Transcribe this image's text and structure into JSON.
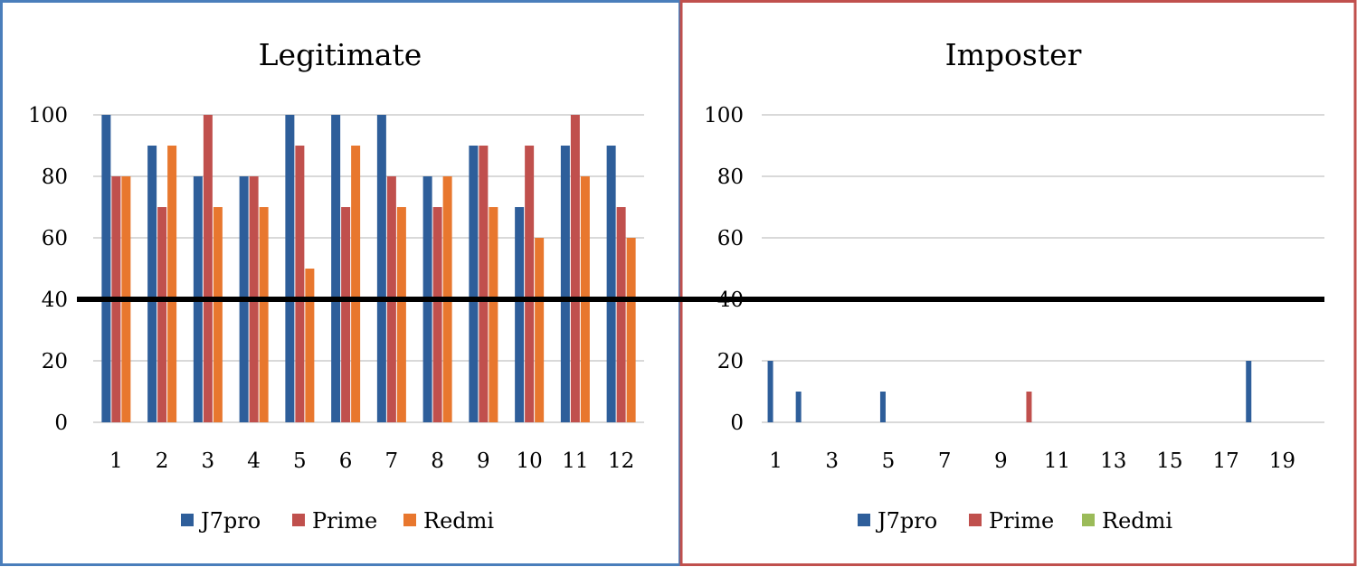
{
  "colors": {
    "J7pro": "#2e5e9a",
    "Prime": "#c0504d",
    "Redmi": "#e8772e",
    "Redmi_imposter": "#9bbb59",
    "left_frame": "#4a7ebb",
    "right_frame": "#c0504d"
  },
  "chart_data": [
    {
      "type": "bar",
      "title": "Legitimate",
      "ylim": [
        0,
        100
      ],
      "yticks": [
        0,
        20,
        40,
        60,
        80,
        100
      ],
      "grid": true,
      "legend": "bottom",
      "categories": [
        "1",
        "2",
        "3",
        "4",
        "5",
        "6",
        "7",
        "8",
        "9",
        "10",
        "11",
        "12"
      ],
      "series": [
        {
          "name": "J7pro",
          "values": [
            100,
            90,
            80,
            80,
            100,
            100,
            100,
            80,
            90,
            70,
            90,
            90
          ]
        },
        {
          "name": "Prime",
          "values": [
            80,
            70,
            100,
            80,
            90,
            70,
            80,
            70,
            90,
            90,
            100,
            70
          ]
        },
        {
          "name": "Redmi",
          "values": [
            80,
            90,
            70,
            70,
            50,
            90,
            70,
            80,
            70,
            60,
            80,
            60
          ]
        }
      ]
    },
    {
      "type": "bar",
      "title": "Imposter",
      "ylim": [
        0,
        100
      ],
      "yticks": [
        0,
        20,
        40,
        60,
        80,
        100
      ],
      "grid": true,
      "legend": "bottom",
      "categories": [
        "1",
        "2",
        "3",
        "4",
        "5",
        "6",
        "7",
        "8",
        "9",
        "10",
        "11",
        "12",
        "13",
        "14",
        "15",
        "16",
        "17",
        "18",
        "19",
        "20"
      ],
      "xtick_labels": [
        "1",
        "3",
        "5",
        "7",
        "9",
        "11",
        "13",
        "15",
        "17",
        "19"
      ],
      "series": [
        {
          "name": "J7pro",
          "values": [
            20,
            10,
            0,
            0,
            10,
            0,
            0,
            0,
            0,
            0,
            0,
            0,
            0,
            0,
            0,
            0,
            0,
            20,
            0,
            0
          ]
        },
        {
          "name": "Prime",
          "values": [
            0,
            0,
            0,
            0,
            0,
            0,
            0,
            0,
            0,
            10,
            0,
            0,
            0,
            0,
            0,
            0,
            0,
            0,
            0,
            0
          ]
        },
        {
          "name": "Redmi",
          "values": [
            0,
            0,
            0,
            0,
            0,
            0,
            0,
            0,
            0,
            0,
            0,
            0,
            0,
            0,
            0,
            0,
            0,
            0,
            0,
            0
          ]
        }
      ]
    }
  ],
  "threshold": {
    "value": 40
  }
}
